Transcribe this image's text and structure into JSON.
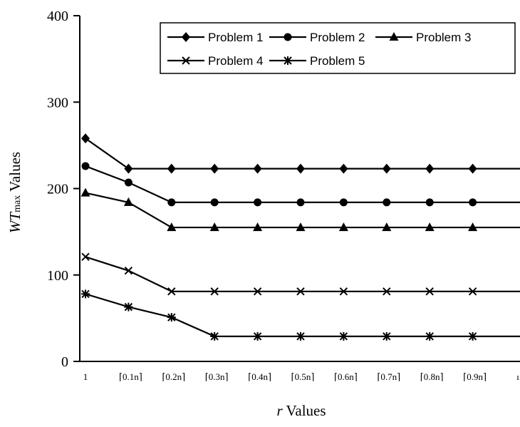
{
  "chart_data": {
    "type": "line",
    "categories": [
      "1",
      "⌈0.1n⌉",
      "⌈0.2n⌉",
      "⌈0.3n⌉",
      "⌈0.4n⌉",
      "⌈0.5n⌉",
      "⌈0.6n⌉",
      "⌈0.7n⌉",
      "⌈0.8n⌉",
      "⌈0.9n⌉",
      "ı"
    ],
    "series": [
      {
        "name": "Problem 1",
        "marker": "diamond",
        "values": [
          258,
          223,
          223,
          223,
          223,
          223,
          223,
          223,
          223,
          223,
          223
        ]
      },
      {
        "name": "Problem 2",
        "marker": "circle",
        "values": [
          226,
          207,
          184,
          184,
          184,
          184,
          184,
          184,
          184,
          184,
          184
        ]
      },
      {
        "name": "Problem 3",
        "marker": "triangle",
        "values": [
          195,
          184,
          155,
          155,
          155,
          155,
          155,
          155,
          155,
          155,
          155
        ]
      },
      {
        "name": "Problem 4",
        "marker": "x",
        "values": [
          121,
          105,
          81,
          81,
          81,
          81,
          81,
          81,
          81,
          81,
          81
        ]
      },
      {
        "name": "Problem 5",
        "marker": "star",
        "values": [
          78,
          63,
          51,
          29,
          29,
          29,
          29,
          29,
          29,
          29,
          29
        ]
      }
    ],
    "yticks": [
      0,
      100,
      200,
      300,
      400
    ],
    "ylim": [
      0,
      400
    ],
    "xlabel_italic": "r",
    "xlabel_rest": "Values",
    "ylabel_italic": "WT",
    "ylabel_sub": "max",
    "ylabel_rest": "Values",
    "grid": false,
    "legend_position": "top-right",
    "line_color": "#000000"
  }
}
